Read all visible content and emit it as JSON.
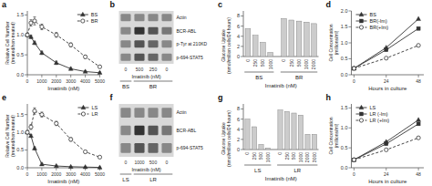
{
  "chart_data": [
    {
      "type": "line",
      "title": "a",
      "xlabel": "Imatinib (nM)",
      "ylabel": "Relative Cell Number\n(treated/non-treated)",
      "x": [
        0,
        250,
        500,
        1000,
        2000,
        3000,
        4000,
        5000
      ],
      "series": [
        {
          "name": "BS",
          "color": "#333333",
          "marker": "triangle",
          "line_style": "solid",
          "values": [
            1.0,
            0.95,
            0.8,
            0.55,
            0.3,
            0.15,
            0.08,
            0.05
          ],
          "errors": [
            0.04,
            0.04,
            0.04,
            0.04,
            0.04,
            0.03,
            0.02,
            0.02
          ]
        },
        {
          "name": "BR",
          "color": "#333333",
          "marker": "circle-open",
          "line_style": "dashed",
          "values": [
            1.0,
            1.3,
            1.35,
            1.2,
            1.0,
            0.75,
            0.45,
            0.2
          ],
          "errors": [
            0.04,
            0.08,
            0.1,
            0.07,
            0.06,
            0.05,
            0.04,
            0.03
          ]
        }
      ],
      "xlim": [
        0,
        5000
      ],
      "ylim": [
        0,
        1.6
      ],
      "xticks": [
        0,
        1000,
        2000,
        3000,
        4000,
        5000
      ],
      "yticks": [
        {
          "value": 0,
          "label": "0.0"
        },
        0.5,
        {
          "value": 1.0,
          "label": "1.0"
        },
        1.5
      ],
      "legend": "upper right"
    },
    {
      "type": "blot",
      "title": "b",
      "xlabel": "Imatinib (nM)",
      "color": "#d8d8d8",
      "groups": [
        {
          "name": "BS",
          "categories": [
            "0"
          ]
        },
        {
          "name": "BR",
          "categories": [
            "500",
            "250",
            "0"
          ]
        }
      ],
      "rows": [
        {
          "name": "Actin",
          "colors": [
            "#888888",
            "#888888",
            "#888888",
            "#888888"
          ]
        },
        {
          "name": "BCR-ABL",
          "colors": [
            "#888888",
            "#333333",
            "#555555",
            "#777777"
          ]
        },
        {
          "name": "p-Tyr at 210KD",
          "colors": [
            "#888888",
            "#555555",
            "#666666",
            "#888888"
          ]
        },
        {
          "name": "p-694-STAT5",
          "colors": [
            "#888888",
            "#555555",
            "#666666",
            "#888888"
          ]
        }
      ]
    },
    {
      "type": "bar",
      "title": "c",
      "xlabel": "Imatinib (nM)",
      "ylabel": "Glucose Uptake\n(nmol/million cells/24 hours)",
      "color": "#cccccc",
      "groups": [
        {
          "name": "BS",
          "categories": [
            "0",
            "250",
            "500",
            "1000"
          ],
          "values": [
            5.5,
            4.2,
            2.8,
            0.8
          ]
        },
        {
          "name": "BR",
          "categories": [
            "0",
            "250",
            "500",
            "1000",
            "2000"
          ],
          "values": [
            7.5,
            7.2,
            7.0,
            6.8,
            6.5
          ]
        }
      ],
      "ylim": [
        0,
        9
      ],
      "yticks": [
        0,
        2,
        4,
        6,
        8
      ]
    },
    {
      "type": "line",
      "title": "d",
      "xlabel": "Hours in culture",
      "ylabel": "Cell Concentration\n(millions/ml)",
      "x": [
        0,
        24,
        48
      ],
      "series": [
        {
          "name": "BS",
          "color": "#333333",
          "marker": "triangle",
          "line_style": "solid",
          "values": [
            0.2,
            0.85,
            1.75
          ]
        },
        {
          "name": "BR(-Im)",
          "color": "#333333",
          "marker": "square",
          "line_style": "solid",
          "values": [
            0.2,
            0.78,
            1.45
          ]
        },
        {
          "name": "BR(+Im)",
          "color": "#333333",
          "marker": "circle-open",
          "line_style": "dashed",
          "values": [
            0.2,
            0.52,
            0.92
          ]
        }
      ],
      "xlim": [
        -2,
        52
      ],
      "ylim": [
        0,
        2.0
      ],
      "xticks": [
        0,
        24,
        48
      ],
      "yticks": [
        {
          "value": 0,
          "label": "0.0"
        },
        0.5,
        {
          "value": 1.0,
          "label": "1.0"
        },
        1.5,
        {
          "value": 2.0,
          "label": "2.0"
        }
      ],
      "legend": "upper left"
    },
    {
      "type": "line",
      "title": "e",
      "xlabel": "Imatinib (nM)",
      "ylabel": "Relative Cell Number\n(treated/non-treated)",
      "x": [
        0,
        250,
        500,
        1000,
        2000,
        3000,
        4000,
        5000
      ],
      "series": [
        {
          "name": "LS",
          "color": "#333333",
          "marker": "triangle",
          "line_style": "solid",
          "values": [
            1.0,
            0.9,
            0.55,
            0.1,
            0.05,
            0.03,
            0.02,
            0.01
          ],
          "errors": [
            0.04,
            0.04,
            0.04,
            0.03,
            0.02,
            0.01,
            0.01,
            0.01
          ]
        },
        {
          "name": "LR",
          "color": "#333333",
          "marker": "circle-open",
          "line_style": "dashed",
          "values": [
            1.0,
            1.15,
            1.6,
            1.5,
            1.25,
            0.8,
            0.45,
            0.3
          ],
          "errors": [
            0.04,
            0.07,
            0.09,
            0.07,
            0.06,
            0.05,
            0.03,
            0.02
          ]
        }
      ],
      "xlim": [
        0,
        5000
      ],
      "ylim": [
        0,
        1.8
      ],
      "xticks": [
        0,
        1000,
        2000,
        3000,
        4000,
        5000
      ],
      "yticks": [
        {
          "value": 0,
          "label": "0.0"
        },
        0.5,
        {
          "value": 1.0,
          "label": "1.0"
        },
        1.5
      ],
      "legend": "upper right"
    },
    {
      "type": "blot",
      "title": "f",
      "xlabel": "Imatinib (nM)",
      "color": "#d8d8d8",
      "groups": [
        {
          "name": "LS",
          "categories": [
            "0"
          ]
        },
        {
          "name": "LR",
          "categories": [
            "1000",
            "500",
            "0"
          ]
        }
      ],
      "rows": [
        {
          "name": "Actin",
          "colors": [
            "#888888",
            "#888888",
            "#888888",
            "#888888"
          ]
        },
        {
          "name": "BCR-ABL",
          "colors": [
            "#888888",
            "#333333",
            "#555555",
            "#777777"
          ]
        },
        {
          "name": "p-694-STAT5",
          "colors": [
            "#888888",
            "#555555",
            "#666666",
            "#888888"
          ]
        }
      ]
    },
    {
      "type": "bar",
      "title": "g",
      "xlabel": "Imatinib (nM)",
      "ylabel": "Glucose Uptake\n(nmol/million cells/24 hours)",
      "color": "#cccccc",
      "groups": [
        {
          "name": "LS",
          "categories": [
            "0",
            "250",
            "500",
            "1000"
          ],
          "values": [
            6.0,
            4.5,
            1.0,
            0.3
          ]
        },
        {
          "name": "LR",
          "categories": [
            "0",
            "250",
            "500",
            "1000",
            "2000",
            "3000"
          ],
          "values": [
            7.8,
            7.5,
            7.2,
            6.8,
            3.0,
            3.0
          ]
        }
      ],
      "ylim": [
        0,
        9
      ],
      "yticks": [
        0,
        2,
        4,
        6,
        8
      ]
    },
    {
      "type": "line",
      "title": "h",
      "xlabel": "Hours in culture",
      "ylabel": "Cell Concentration\n(millions/ml)",
      "x": [
        0,
        24,
        48
      ],
      "series": [
        {
          "name": "LS",
          "color": "#333333",
          "marker": "triangle",
          "line_style": "solid",
          "values": [
            0.2,
            0.65,
            1.2
          ]
        },
        {
          "name": "LR (-Im)",
          "color": "#333333",
          "marker": "square",
          "line_style": "solid",
          "values": [
            0.2,
            0.6,
            1.1
          ]
        },
        {
          "name": "LR (+Im)",
          "color": "#333333",
          "marker": "circle-open",
          "line_style": "dashed",
          "values": [
            0.2,
            0.45,
            0.75
          ]
        }
      ],
      "xlim": [
        -2,
        52
      ],
      "ylim": [
        0,
        1.6
      ],
      "xticks": [
        0,
        24,
        48
      ],
      "yticks": [
        {
          "value": 0,
          "label": "0.0"
        },
        0.5,
        {
          "value": 1.0,
          "label": "1.0"
        },
        1.5
      ],
      "legend": "upper left"
    }
  ]
}
